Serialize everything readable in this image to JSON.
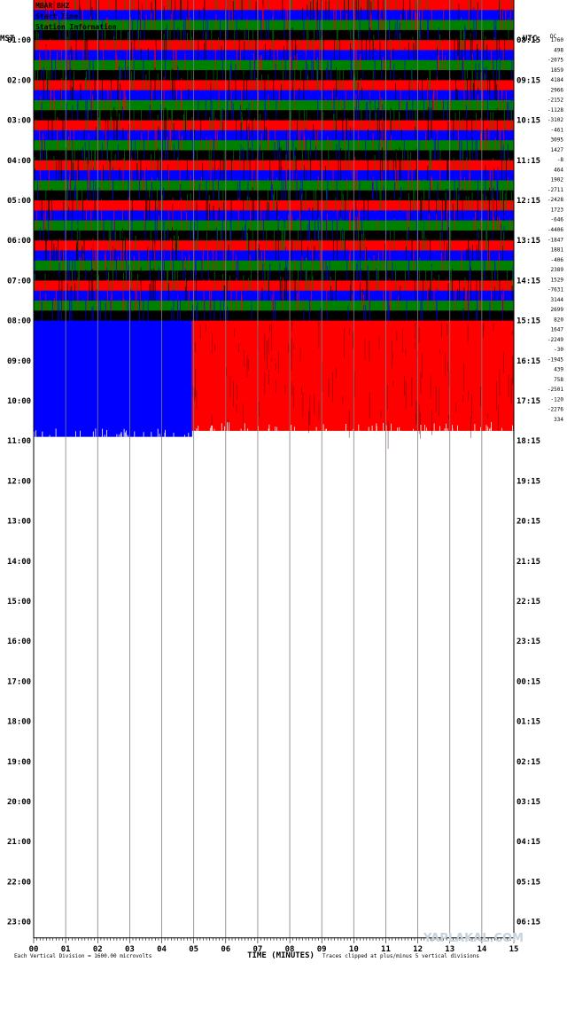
{
  "chart_data": {
    "type": "helicorder",
    "left_timezone": "MST",
    "right_timezone": "UTC",
    "left_hour_labels": [
      "01:00",
      "02:00",
      "03:00",
      "04:00",
      "05:00",
      "06:00",
      "07:00",
      "08:00",
      "09:00",
      "10:00",
      "11:00",
      "12:00",
      "13:00",
      "14:00",
      "15:00",
      "16:00",
      "17:00",
      "18:00",
      "19:00",
      "20:00",
      "21:00",
      "22:00",
      "23:00"
    ],
    "right_hour_labels": [
      "08:15",
      "09:15",
      "10:15",
      "11:15",
      "12:15",
      "13:15",
      "14:15",
      "15:15",
      "16:15",
      "17:15",
      "18:15",
      "19:15",
      "20:15",
      "21:15",
      "22:15",
      "23:15",
      "00:15",
      "01:15",
      "02:15",
      "03:15",
      "04:15",
      "05:15",
      "06:15"
    ],
    "row_means": [
      "1760",
      "498",
      "-2075",
      "1859",
      "4184",
      "2966",
      "-2152",
      "-1128",
      "-3102",
      "-461",
      "3095",
      "1427",
      "-8",
      "464",
      "1902",
      "-2711",
      "-2428",
      "1723",
      "-646",
      "-4406",
      "-1847",
      "1881",
      "-406",
      "2389",
      "1529",
      "-7631",
      "3144",
      "2699",
      "820",
      "1647",
      "-2249",
      "-30",
      "-1945",
      "439",
      "758",
      "-2501",
      "-120",
      "-2276",
      "334"
    ],
    "right_corner_label": "DC",
    "x_tick_labels": [
      "00",
      "01",
      "02",
      "03",
      "04",
      "05",
      "06",
      "07",
      "08",
      "09",
      "10",
      "11",
      "12",
      "13",
      "14",
      "15"
    ],
    "xlabel": "TIME (MINUTES)",
    "xlim": [
      0,
      15
    ],
    "hours_per_day": 24,
    "lines_per_hour": 4,
    "data_start_hour": 0,
    "data_end_hour": 10.75,
    "last_line_fraction_filled": 0.33,
    "saturated_from_hour": 8,
    "trace_colors": [
      "#ff0000",
      "#0000ff",
      "#008000",
      "#000000"
    ],
    "saturated_colors": {
      "last_partial_line": "#0000ff",
      "saturated_band": "#ff0000"
    },
    "footer_left": "Each Vertical Division = 1600.00 microvolts",
    "footer_right": "Traces clipped at plus/minus 5 vertical divisions",
    "header_lines": [
      "MBAR BHZ",
      "Start Time",
      "Station Information"
    ],
    "watermark": "YAPLAKAL.COM",
    "grid": true
  }
}
